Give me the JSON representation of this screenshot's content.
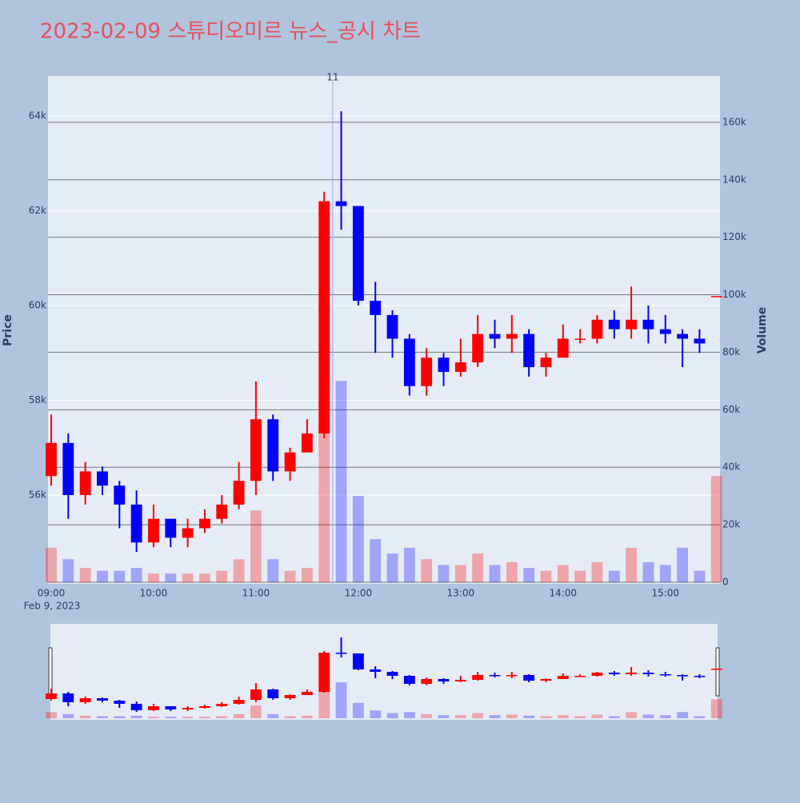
{
  "chart_data": {
    "type": "candlestick",
    "title": "2023-02-09 스튜디오미르 뉴스_공시 차트",
    "x_date_label": "Feb 9, 2023",
    "y_label": "Price",
    "y2_label": "Volume",
    "annotation": {
      "x": "11:45",
      "text": "11"
    },
    "increasing_color": "#ff0000",
    "decreasing_color": "#0000ff",
    "x": [
      "09:00",
      "09:10",
      "09:20",
      "09:30",
      "09:40",
      "09:50",
      "10:00",
      "10:10",
      "10:20",
      "10:30",
      "10:40",
      "10:50",
      "11:00",
      "11:10",
      "11:20",
      "11:30",
      "11:40",
      "11:50",
      "12:00",
      "12:10",
      "12:20",
      "12:30",
      "12:40",
      "12:50",
      "13:00",
      "13:10",
      "13:20",
      "13:30",
      "13:40",
      "13:50",
      "14:00",
      "14:10",
      "14:20",
      "14:30",
      "14:40",
      "14:50",
      "15:00",
      "15:10",
      "15:20",
      "15:30"
    ],
    "open": [
      56400,
      57100,
      56000,
      56500,
      56200,
      55800,
      55000,
      55500,
      55100,
      55300,
      55500,
      55800,
      56300,
      57600,
      56500,
      56900,
      57300,
      62200,
      62100,
      60100,
      59800,
      59300,
      58300,
      58900,
      58600,
      58800,
      59400,
      59300,
      59400,
      58700,
      58900,
      59300,
      59300,
      59700,
      59500,
      59700,
      59500,
      59400,
      59300,
      60200
    ],
    "high": [
      57700,
      57300,
      56700,
      56600,
      56300,
      56100,
      55800,
      55500,
      55500,
      55700,
      56000,
      56700,
      58400,
      57700,
      57000,
      57600,
      62400,
      64100,
      62100,
      60500,
      59900,
      59400,
      59100,
      59000,
      59300,
      59800,
      59700,
      59800,
      59500,
      59000,
      59600,
      59500,
      59800,
      59900,
      60400,
      60000,
      59800,
      59500,
      59500,
      60200
    ],
    "low": [
      56200,
      55500,
      55800,
      56000,
      55300,
      54800,
      54900,
      54900,
      54900,
      55200,
      55400,
      55700,
      56000,
      56300,
      56300,
      56900,
      57200,
      61600,
      60000,
      59000,
      58900,
      58100,
      58100,
      58300,
      58500,
      58700,
      59100,
      59000,
      58500,
      58500,
      58900,
      59200,
      59200,
      59300,
      59300,
      59200,
      59200,
      58700,
      59000,
      60200
    ],
    "close": [
      57100,
      56000,
      56500,
      56200,
      55800,
      55000,
      55500,
      55100,
      55300,
      55500,
      55800,
      56300,
      57600,
      56500,
      56900,
      57300,
      62200,
      62100,
      60100,
      59800,
      59300,
      58300,
      58900,
      58600,
      58800,
      59400,
      59300,
      59400,
      58700,
      58900,
      59300,
      59300,
      59700,
      59500,
      59700,
      59500,
      59400,
      59300,
      59200,
      60200
    ],
    "volume": [
      12000,
      8000,
      5000,
      4000,
      4000,
      5000,
      3000,
      3000,
      3000,
      3000,
      4000,
      8000,
      25000,
      8000,
      4000,
      5000,
      55000,
      70000,
      30000,
      15000,
      10000,
      12000,
      8000,
      6000,
      6000,
      10000,
      6000,
      7000,
      5000,
      4000,
      6000,
      4000,
      7000,
      4000,
      12000,
      7000,
      6000,
      12000,
      4000,
      37000
    ],
    "xlim": [
      "09:00",
      "15:32"
    ],
    "xticks": [
      "09:00",
      "10:00",
      "11:00",
      "12:00",
      "13:00",
      "14:00",
      "15:00"
    ],
    "ylim": [
      54127,
      64844
    ],
    "yticks": [
      {
        "value": 56000,
        "label": "56k"
      },
      {
        "value": 58000,
        "label": "58k"
      },
      {
        "value": 60000,
        "label": "60k"
      },
      {
        "value": 62000,
        "label": "62k"
      },
      {
        "value": 64000,
        "label": "64k"
      }
    ],
    "y2lim": [
      -560,
      176100
    ],
    "y2ticks": [
      0,
      {
        "value": 20000,
        "label": "20k"
      },
      {
        "value": 40000,
        "label": "40k"
      },
      {
        "value": 60000,
        "label": "60k"
      },
      {
        "value": 80000,
        "label": "80k"
      },
      {
        "value": 100000,
        "label": "100k"
      },
      {
        "value": 120000,
        "label": "120k"
      },
      {
        "value": 140000,
        "label": "140k"
      },
      {
        "value": 160000,
        "label": "160k"
      }
    ],
    "grid": true,
    "rangeslider": true
  }
}
